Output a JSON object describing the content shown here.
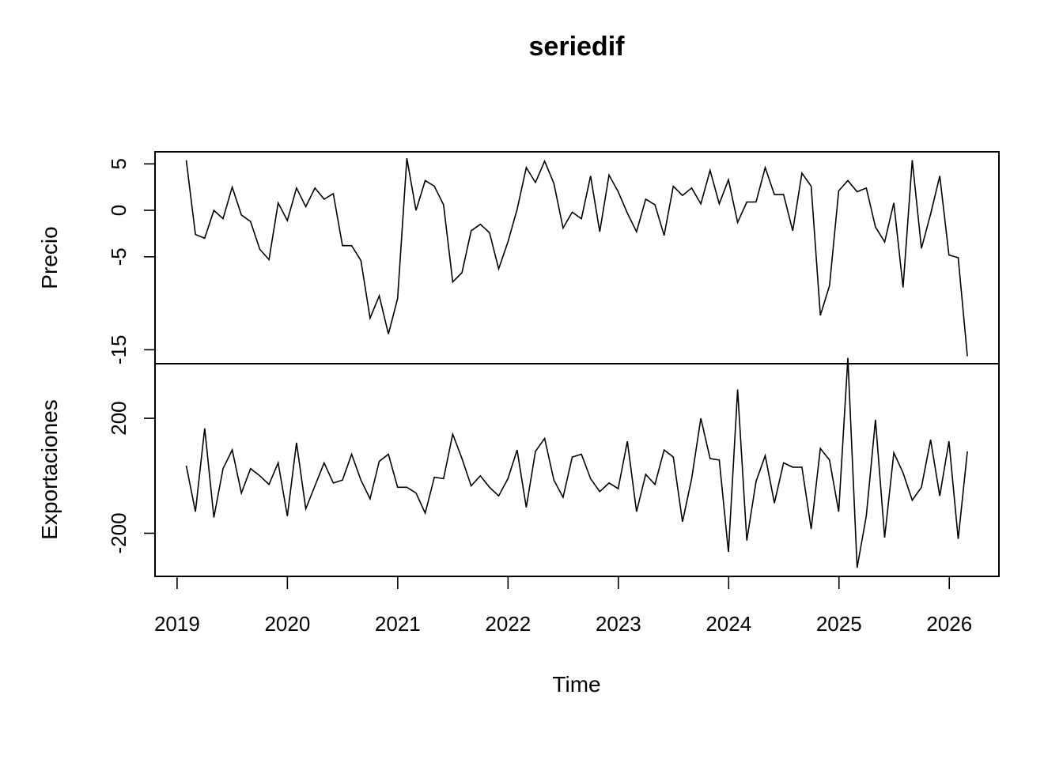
{
  "chart_data": {
    "type": "line",
    "title": "seriedif",
    "xlabel": "Time",
    "x_start": 2019.0833,
    "x_step": 0.0833,
    "xlim": [
      2018.8,
      2026.45
    ],
    "x_ticks": [
      "2019",
      "2020",
      "2021",
      "2022",
      "2023",
      "2024",
      "2025",
      "2026"
    ],
    "panels": [
      {
        "name": "Precio",
        "ylabel": "Precio",
        "ylim": [
          -16.5,
          6.3
        ],
        "y_ticks": [
          5,
          0,
          -5,
          -15
        ],
        "y_tick_labels": [
          "5",
          "0",
          "-5",
          "-15"
        ],
        "values": [
          5.4,
          -2.6,
          -3.0,
          0.0,
          -0.9,
          2.5,
          -0.5,
          -1.2,
          -4.2,
          -5.3,
          0.8,
          -1.1,
          2.4,
          0.4,
          2.4,
          1.2,
          1.8,
          -3.8,
          -3.8,
          -5.4,
          -11.6,
          -9.2,
          -13.3,
          -9.5,
          5.6,
          0.0,
          3.2,
          2.6,
          0.6,
          -7.7,
          -6.7,
          -2.2,
          -1.5,
          -2.4,
          -6.3,
          -3.4,
          0.1,
          4.6,
          3.0,
          5.3,
          2.9,
          -1.9,
          -0.2,
          -0.9,
          3.7,
          -2.3,
          3.8,
          2.0,
          -0.3,
          -2.3,
          1.2,
          0.6,
          -2.7,
          2.6,
          1.6,
          2.4,
          0.7,
          4.3,
          0.7,
          3.3,
          -1.3,
          0.9,
          0.9,
          4.6,
          1.7,
          1.7,
          -2.2,
          4.0,
          2.6,
          -11.3,
          -8.1,
          2.1,
          3.2,
          2.0,
          2.4,
          -1.8,
          -3.4,
          0.8,
          -8.3,
          5.4,
          -4.1,
          -0.4,
          3.7,
          -4.8,
          -5.1,
          -15.7
        ]
      },
      {
        "name": "Exportaciones",
        "ylabel": "Exportaciones",
        "ylim": [
          -350,
          390
        ],
        "y_ticks": [
          200,
          -200
        ],
        "y_tick_labels": [
          "200",
          "-200"
        ],
        "values": [
          35,
          -125,
          165,
          -145,
          25,
          90,
          -60,
          25,
          0,
          -30,
          45,
          -140,
          115,
          -115,
          -35,
          45,
          -25,
          -15,
          75,
          -15,
          -80,
          50,
          75,
          -40,
          -40,
          -60,
          -130,
          -5,
          -10,
          145,
          60,
          -35,
          0,
          -40,
          -70,
          -10,
          90,
          -110,
          85,
          130,
          -15,
          -75,
          65,
          75,
          -10,
          -55,
          -25,
          -45,
          120,
          -125,
          5,
          -30,
          90,
          65,
          -160,
          -10,
          200,
          60,
          55,
          -265,
          300,
          -225,
          -20,
          70,
          -95,
          45,
          30,
          30,
          -185,
          95,
          55,
          -125,
          410,
          -320,
          -140,
          195,
          -215,
          80,
          10,
          -85,
          -40,
          125,
          -70,
          120,
          -220,
          85
        ]
      }
    ]
  }
}
